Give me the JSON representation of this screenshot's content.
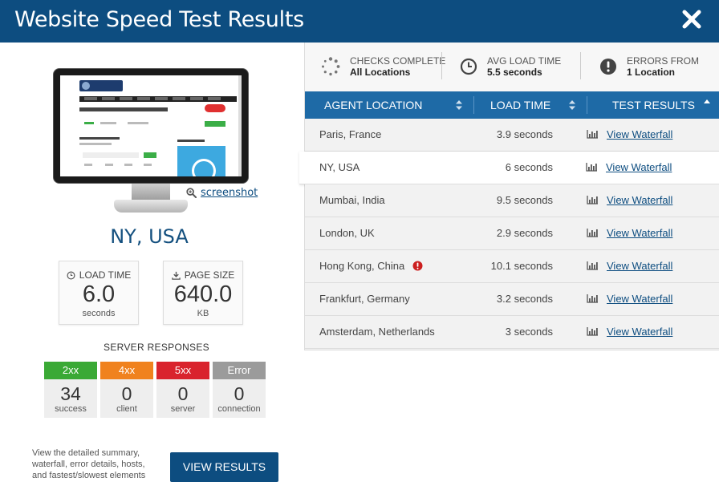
{
  "header": {
    "title": "Website Speed Test Results"
  },
  "left": {
    "screenshot_link": "screenshot",
    "location": "NY, USA",
    "load_time": {
      "label": "LOAD TIME",
      "value": "6.0",
      "unit": "seconds"
    },
    "page_size": {
      "label": "PAGE SIZE",
      "value": "640.0",
      "unit": "KB"
    },
    "server_responses": {
      "title": "SERVER RESPONSES",
      "items": [
        {
          "code": "2xx",
          "count": "34",
          "caption": "success",
          "color": "#3aa935"
        },
        {
          "code": "4xx",
          "count": "0",
          "caption": "client",
          "color": "#f0821e"
        },
        {
          "code": "5xx",
          "count": "0",
          "caption": "server",
          "color": "#d9232d"
        },
        {
          "code": "Error",
          "count": "0",
          "caption": "connection",
          "color": "#9b9b9b"
        }
      ]
    },
    "description": "View the detailed summary, waterfall, error details, hosts, and fastest/slowest elements",
    "view_results": "VIEW RESULTS"
  },
  "summary": {
    "checks": {
      "label": "CHECKS COMPLETE",
      "value": "All Locations"
    },
    "avg": {
      "label": "AVG LOAD TIME",
      "value": "5.5 seconds"
    },
    "errors": {
      "label": "ERRORS FROM",
      "value": "1 Location"
    }
  },
  "table": {
    "headers": {
      "location": "AGENT LOCATION",
      "time": "LOAD TIME",
      "results": "TEST RESULTS"
    },
    "link_label": "View Waterfall",
    "rows": [
      {
        "location": "Paris, France",
        "time": "3.9 seconds"
      },
      {
        "location": "NY, USA",
        "time": "6 seconds"
      },
      {
        "location": "Mumbai, India",
        "time": "9.5 seconds"
      },
      {
        "location": "London, UK",
        "time": "2.9 seconds"
      },
      {
        "location": "Hong Kong, China",
        "time": "10.1 seconds"
      },
      {
        "location": "Frankfurt, Germany",
        "time": "3.2 seconds"
      },
      {
        "location": "Amsterdam, Netherlands",
        "time": "3 seconds"
      }
    ]
  },
  "colors": {
    "header": "#0d4d80",
    "table_header": "#1e6aa6",
    "error": "#cc1f1f"
  }
}
